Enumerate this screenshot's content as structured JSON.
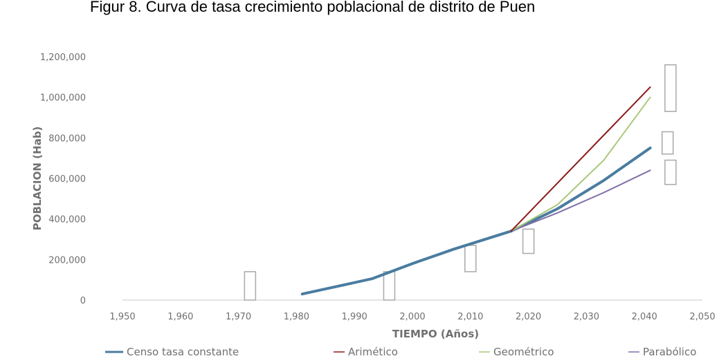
{
  "caption": "Figur 8. Curva de tasa crecimiento poblacional de distrito de Puen",
  "chart_data": {
    "type": "line",
    "title": "",
    "xlabel": "TIEMPO (Años)",
    "ylabel": "POBLACION (Hab)",
    "xlim": [
      1950,
      2050
    ],
    "ylim": [
      0,
      1200000
    ],
    "x_ticks": [
      "1,950",
      "1,960",
      "1,970",
      "1,980",
      "1,990",
      "2,000",
      "2,010",
      "2,020",
      "2,030",
      "2,040",
      "2,050"
    ],
    "y_ticks": [
      "0",
      "200,000",
      "400,000",
      "600,000",
      "800,000",
      "1,000,000",
      "1,200,000"
    ],
    "x_tick_values": [
      1950,
      1960,
      1970,
      1980,
      1990,
      2000,
      2010,
      2020,
      2030,
      2040,
      2050
    ],
    "y_tick_values": [
      0,
      200000,
      400000,
      600000,
      800000,
      1000000,
      1200000
    ],
    "grid": false,
    "legend_position": "bottom",
    "series": [
      {
        "name": "Censo tasa constante",
        "color": "#4a7ca0",
        "width": 4,
        "x": [
          1981,
          1993,
          2000,
          2007,
          2017,
          2025,
          2033,
          2041
        ],
        "y": [
          30000,
          105000,
          180000,
          250000,
          340000,
          450000,
          590000,
          750000
        ]
      },
      {
        "name": "Arimético",
        "color": "#8b1a1a",
        "width": 2,
        "x": [
          2017,
          2041
        ],
        "y": [
          340000,
          1050000
        ]
      },
      {
        "name": "Geométrico",
        "color": "#a8c878",
        "width": 2,
        "x": [
          2017,
          2025,
          2033,
          2041
        ],
        "y": [
          340000,
          470000,
          690000,
          1000000
        ]
      },
      {
        "name": "Parabólico",
        "color": "#7f6ea8",
        "width": 2,
        "x": [
          2017,
          2025,
          2033,
          2041
        ],
        "y": [
          340000,
          430000,
          530000,
          640000
        ]
      }
    ],
    "annotation_boxes": [
      {
        "x": 1972,
        "y0": 0,
        "y1": 140000
      },
      {
        "x": 1996,
        "y0": 0,
        "y1": 140000
      },
      {
        "x": 2010,
        "y0": 140000,
        "y1": 270000
      },
      {
        "x": 2020,
        "y0": 230000,
        "y1": 350000
      },
      {
        "x": 2044.5,
        "y0": 930000,
        "y1": 1160000
      },
      {
        "x": 2044,
        "y0": 720000,
        "y1": 830000
      },
      {
        "x": 2044.5,
        "y0": 570000,
        "y1": 690000
      }
    ]
  }
}
